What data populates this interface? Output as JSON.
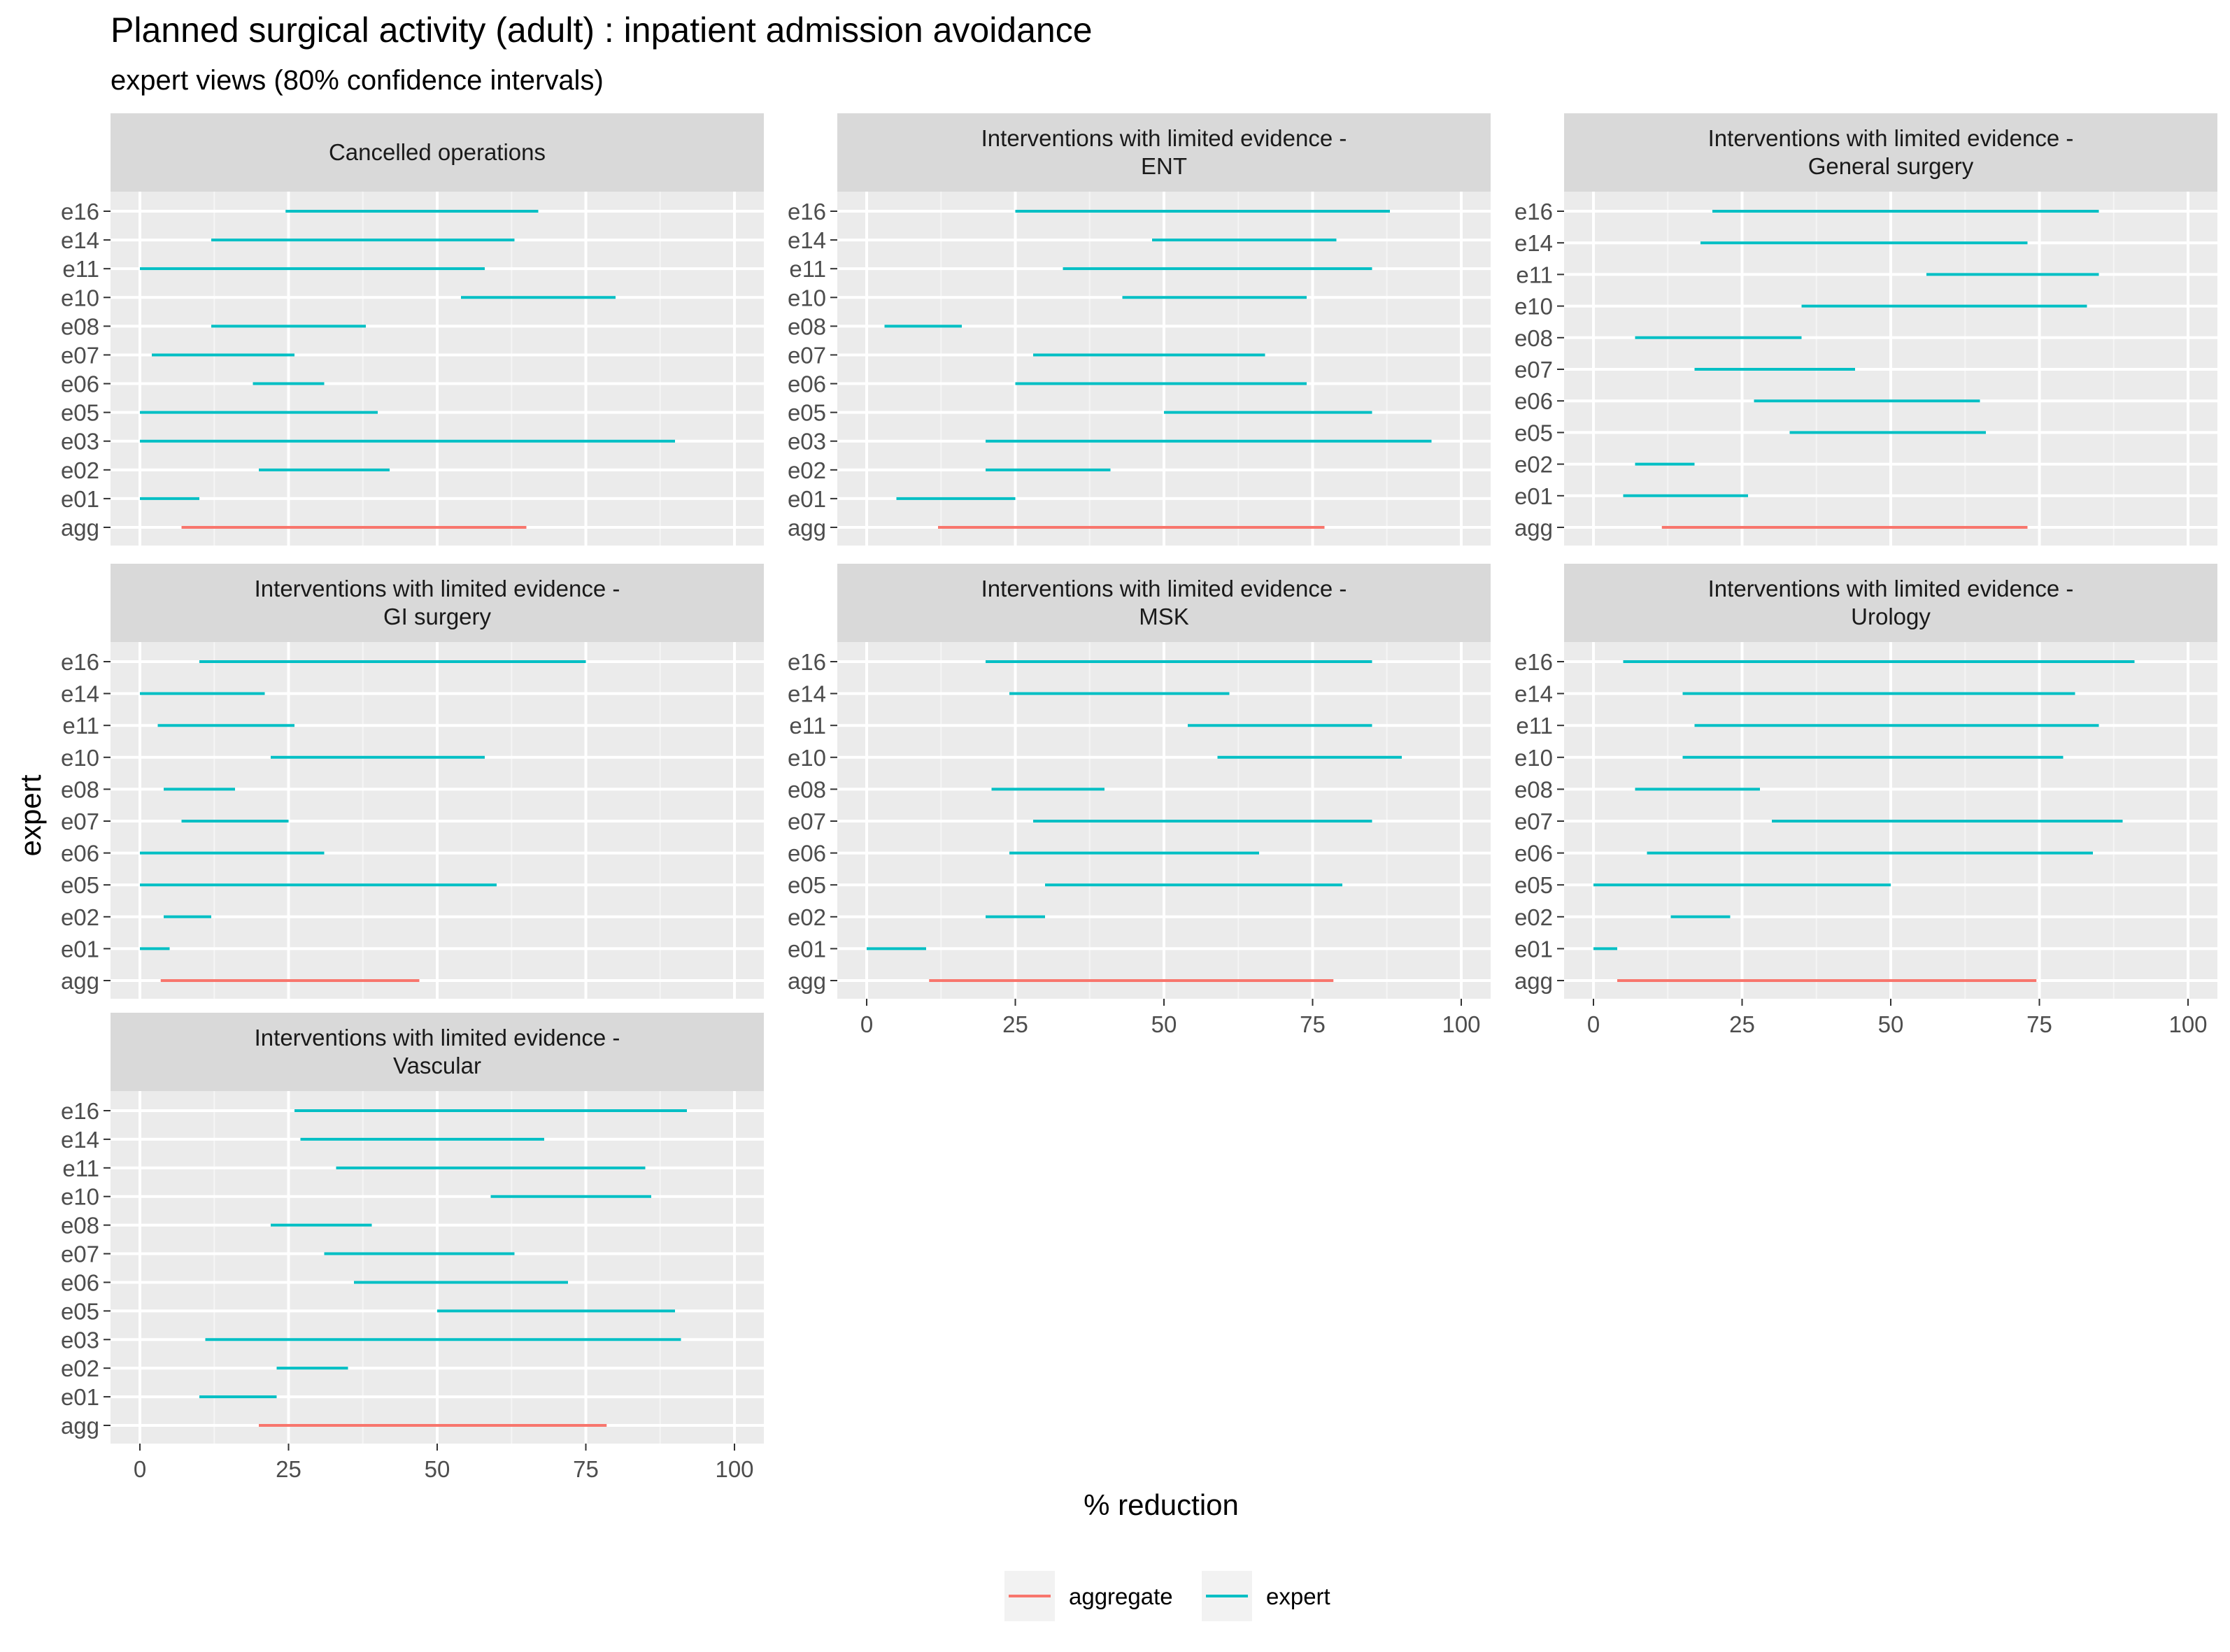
{
  "title": "Planned surgical activity (adult) : inpatient admission avoidance",
  "subtitle": "expert views (80% confidence intervals)",
  "colors": {
    "aggregate": "#F8766D",
    "expert": "#00BFC4",
    "panel_bg": "#EBEBEB",
    "strip_bg": "#D9D9D9",
    "grid_major": "#FFFFFF"
  },
  "chart_data": {
    "type": "interval",
    "xlabel": "% reduction",
    "ylabel": "expert",
    "xlim": [
      0,
      100
    ],
    "x_ticks": [
      0,
      25,
      50,
      75,
      100
    ],
    "grid": true,
    "legend": {
      "position": "bottom",
      "entries": [
        {
          "key": "aggregate",
          "label": "aggregate"
        },
        {
          "key": "expert",
          "label": "expert"
        }
      ]
    },
    "panels": [
      {
        "title": [
          "Cancelled operations"
        ],
        "rows": [
          {
            "label": "e16",
            "type": "expert",
            "low": 24.5,
            "high": 67
          },
          {
            "label": "e14",
            "type": "expert",
            "low": 12,
            "high": 63
          },
          {
            "label": "e11",
            "type": "expert",
            "low": 0,
            "high": 58
          },
          {
            "label": "e10",
            "type": "expert",
            "low": 54,
            "high": 80
          },
          {
            "label": "e08",
            "type": "expert",
            "low": 12,
            "high": 38
          },
          {
            "label": "e07",
            "type": "expert",
            "low": 2,
            "high": 26
          },
          {
            "label": "e06",
            "type": "expert",
            "low": 19,
            "high": 31
          },
          {
            "label": "e05",
            "type": "expert",
            "low": 0,
            "high": 40
          },
          {
            "label": "e03",
            "type": "expert",
            "low": 0,
            "high": 90
          },
          {
            "label": "e02",
            "type": "expert",
            "low": 20,
            "high": 42
          },
          {
            "label": "e01",
            "type": "expert",
            "low": 0,
            "high": 10
          },
          {
            "label": "agg",
            "type": "aggregate",
            "low": 7,
            "high": 65
          }
        ]
      },
      {
        "title": [
          "Interventions with limited evidence -",
          "ENT"
        ],
        "rows": [
          {
            "label": "e16",
            "type": "expert",
            "low": 25,
            "high": 88
          },
          {
            "label": "e14",
            "type": "expert",
            "low": 48,
            "high": 79
          },
          {
            "label": "e11",
            "type": "expert",
            "low": 33,
            "high": 85
          },
          {
            "label": "e10",
            "type": "expert",
            "low": 43,
            "high": 74
          },
          {
            "label": "e08",
            "type": "expert",
            "low": 3,
            "high": 16
          },
          {
            "label": "e07",
            "type": "expert",
            "low": 28,
            "high": 67
          },
          {
            "label": "e06",
            "type": "expert",
            "low": 25,
            "high": 74
          },
          {
            "label": "e05",
            "type": "expert",
            "low": 50,
            "high": 85
          },
          {
            "label": "e03",
            "type": "expert",
            "low": 20,
            "high": 95
          },
          {
            "label": "e02",
            "type": "expert",
            "low": 20,
            "high": 41
          },
          {
            "label": "e01",
            "type": "expert",
            "low": 5,
            "high": 25
          },
          {
            "label": "agg",
            "type": "aggregate",
            "low": 12,
            "high": 77
          }
        ]
      },
      {
        "title": [
          "Interventions with limited evidence -",
          "General surgery"
        ],
        "rows": [
          {
            "label": "e16",
            "type": "expert",
            "low": 20,
            "high": 85
          },
          {
            "label": "e14",
            "type": "expert",
            "low": 18,
            "high": 73
          },
          {
            "label": "e11",
            "type": "expert",
            "low": 56,
            "high": 85
          },
          {
            "label": "e10",
            "type": "expert",
            "low": 35,
            "high": 83
          },
          {
            "label": "e08",
            "type": "expert",
            "low": 7,
            "high": 35
          },
          {
            "label": "e07",
            "type": "expert",
            "low": 17,
            "high": 44
          },
          {
            "label": "e06",
            "type": "expert",
            "low": 27,
            "high": 65
          },
          {
            "label": "e05",
            "type": "expert",
            "low": 33,
            "high": 66
          },
          {
            "label": "e02",
            "type": "expert",
            "low": 7,
            "high": 17
          },
          {
            "label": "e01",
            "type": "expert",
            "low": 5,
            "high": 26
          },
          {
            "label": "agg",
            "type": "aggregate",
            "low": 11.5,
            "high": 73
          }
        ]
      },
      {
        "title": [
          "Interventions with limited evidence -",
          "GI surgery"
        ],
        "rows": [
          {
            "label": "e16",
            "type": "expert",
            "low": 10,
            "high": 75
          },
          {
            "label": "e14",
            "type": "expert",
            "low": 0,
            "high": 21
          },
          {
            "label": "e11",
            "type": "expert",
            "low": 3,
            "high": 26
          },
          {
            "label": "e10",
            "type": "expert",
            "low": 22,
            "high": 58
          },
          {
            "label": "e08",
            "type": "expert",
            "low": 4,
            "high": 16
          },
          {
            "label": "e07",
            "type": "expert",
            "low": 7,
            "high": 25
          },
          {
            "label": "e06",
            "type": "expert",
            "low": 0,
            "high": 31
          },
          {
            "label": "e05",
            "type": "expert",
            "low": 0,
            "high": 60
          },
          {
            "label": "e02",
            "type": "expert",
            "low": 4,
            "high": 12
          },
          {
            "label": "e01",
            "type": "expert",
            "low": 0,
            "high": 5
          },
          {
            "label": "agg",
            "type": "aggregate",
            "low": 3.5,
            "high": 47
          }
        ]
      },
      {
        "title": [
          "Interventions with limited evidence -",
          "MSK"
        ],
        "rows": [
          {
            "label": "e16",
            "type": "expert",
            "low": 20,
            "high": 85
          },
          {
            "label": "e14",
            "type": "expert",
            "low": 24,
            "high": 61
          },
          {
            "label": "e11",
            "type": "expert",
            "low": 54,
            "high": 85
          },
          {
            "label": "e10",
            "type": "expert",
            "low": 59,
            "high": 90
          },
          {
            "label": "e08",
            "type": "expert",
            "low": 21,
            "high": 40
          },
          {
            "label": "e07",
            "type": "expert",
            "low": 28,
            "high": 85
          },
          {
            "label": "e06",
            "type": "expert",
            "low": 24,
            "high": 66
          },
          {
            "label": "e05",
            "type": "expert",
            "low": 30,
            "high": 80
          },
          {
            "label": "e02",
            "type": "expert",
            "low": 20,
            "high": 30
          },
          {
            "label": "e01",
            "type": "expert",
            "low": 0,
            "high": 10
          },
          {
            "label": "agg",
            "type": "aggregate",
            "low": 10.5,
            "high": 78.5
          }
        ]
      },
      {
        "title": [
          "Interventions with limited evidence -",
          "Urology"
        ],
        "rows": [
          {
            "label": "e16",
            "type": "expert",
            "low": 5,
            "high": 91
          },
          {
            "label": "e14",
            "type": "expert",
            "low": 15,
            "high": 81
          },
          {
            "label": "e11",
            "type": "expert",
            "low": 17,
            "high": 85
          },
          {
            "label": "e10",
            "type": "expert",
            "low": 15,
            "high": 79
          },
          {
            "label": "e08",
            "type": "expert",
            "low": 7,
            "high": 28
          },
          {
            "label": "e07",
            "type": "expert",
            "low": 30,
            "high": 89
          },
          {
            "label": "e06",
            "type": "expert",
            "low": 9,
            "high": 84
          },
          {
            "label": "e05",
            "type": "expert",
            "low": 0,
            "high": 50
          },
          {
            "label": "e02",
            "type": "expert",
            "low": 13,
            "high": 23
          },
          {
            "label": "e01",
            "type": "expert",
            "low": 0,
            "high": 4
          },
          {
            "label": "agg",
            "type": "aggregate",
            "low": 4,
            "high": 74.5
          }
        ]
      },
      {
        "title": [
          "Interventions with limited evidence -",
          "Vascular"
        ],
        "rows": [
          {
            "label": "e16",
            "type": "expert",
            "low": 26,
            "high": 92
          },
          {
            "label": "e14",
            "type": "expert",
            "low": 27,
            "high": 68
          },
          {
            "label": "e11",
            "type": "expert",
            "low": 33,
            "high": 85
          },
          {
            "label": "e10",
            "type": "expert",
            "low": 59,
            "high": 86
          },
          {
            "label": "e08",
            "type": "expert",
            "low": 22,
            "high": 39
          },
          {
            "label": "e07",
            "type": "expert",
            "low": 31,
            "high": 63
          },
          {
            "label": "e06",
            "type": "expert",
            "low": 36,
            "high": 72
          },
          {
            "label": "e05",
            "type": "expert",
            "low": 50,
            "high": 90
          },
          {
            "label": "e03",
            "type": "expert",
            "low": 11,
            "high": 91
          },
          {
            "label": "e02",
            "type": "expert",
            "low": 23,
            "high": 35
          },
          {
            "label": "e01",
            "type": "expert",
            "low": 10,
            "high": 23
          },
          {
            "label": "agg",
            "type": "aggregate",
            "low": 20,
            "high": 78.5
          }
        ]
      }
    ]
  }
}
